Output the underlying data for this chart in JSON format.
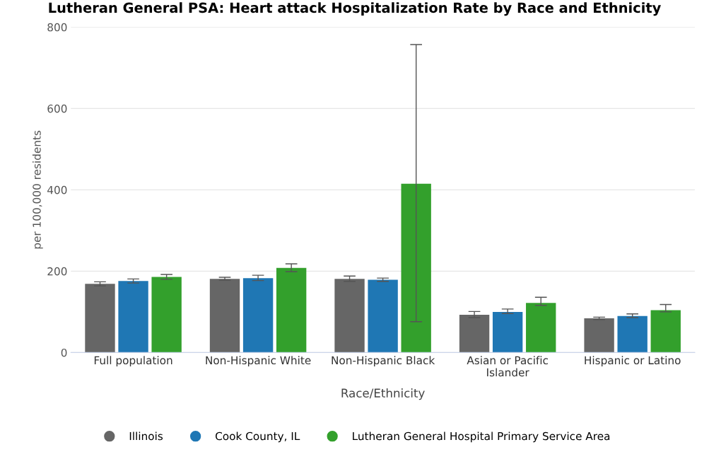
{
  "chart_data": {
    "type": "bar",
    "title": "Lutheran General PSA: Heart attack Hospitalization Rate by Race and Ethnicity",
    "xlabel": "Race/Ethnicity",
    "ylabel": "per 100,000 residents",
    "categories": [
      "Full population",
      "Non-Hispanic White",
      "Non-Hispanic Black",
      "Asian or Pacific\nIslander",
      "Hispanic or Latino"
    ],
    "series": [
      {
        "name": "Illinois",
        "color": "#666666",
        "values": [
          169,
          181,
          181,
          93,
          84
        ],
        "errors": [
          [
            164,
            174
          ],
          [
            178,
            185
          ],
          [
            175,
            188
          ],
          [
            86,
            101
          ],
          [
            81,
            87
          ]
        ]
      },
      {
        "name": "Cook County, IL",
        "color": "#1f77b4",
        "values": [
          176,
          183,
          179,
          100,
          90
        ],
        "errors": [
          [
            171,
            181
          ],
          [
            177,
            190
          ],
          [
            175,
            183
          ],
          [
            96,
            107
          ],
          [
            86,
            95
          ]
        ]
      },
      {
        "name": "Lutheran General Hospital Primary Service Area",
        "color": "#33a02c",
        "values": [
          186,
          208,
          415,
          122,
          104
        ],
        "errors": [
          [
            180,
            192
          ],
          [
            199,
            218
          ],
          [
            76,
            757
          ],
          [
            116,
            136
          ],
          [
            100,
            118
          ]
        ]
      }
    ],
    "ylim": [
      0,
      800
    ],
    "yticks": [
      0,
      200,
      400,
      600,
      800
    ],
    "grid": "y",
    "legend": "bottom"
  }
}
